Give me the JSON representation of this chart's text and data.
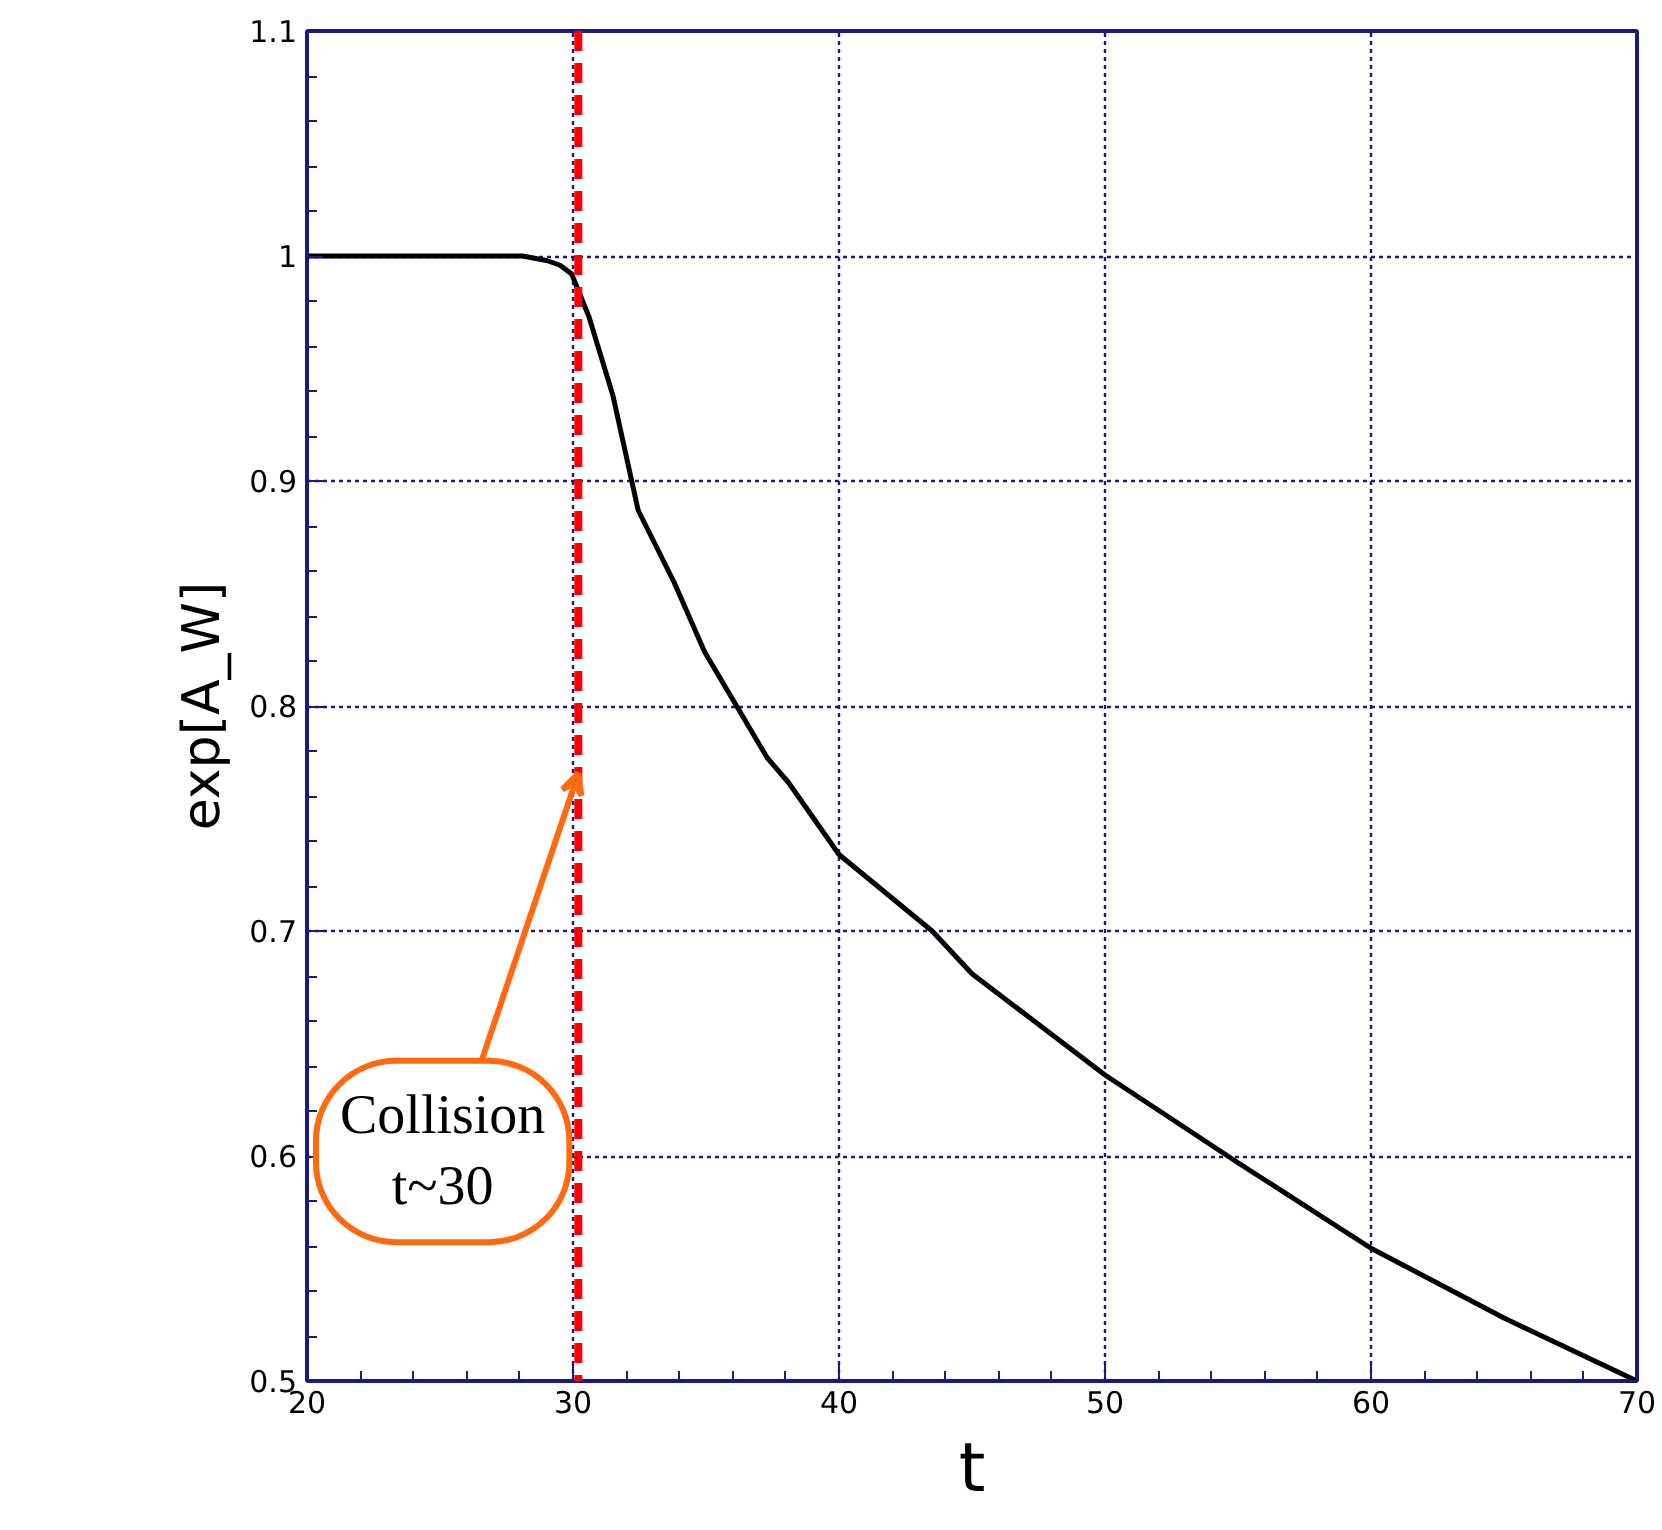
{
  "chart_data": {
    "type": "line",
    "xlabel": "t",
    "ylabel": "exp[A_W]",
    "x": [
      20,
      22,
      24,
      26,
      28,
      28.1,
      29,
      29.5,
      29.95,
      30.6,
      31.5,
      32.45,
      33.8,
      34.95,
      37.3,
      38.1,
      40,
      43.5,
      45,
      50,
      55,
      60,
      65,
      70
    ],
    "series": [
      {
        "color": "#000000",
        "values": [
          1.0,
          1.0,
          1.0,
          1.0,
          1.0,
          1.0,
          0.998,
          0.996,
          0.992,
          0.973,
          0.938,
          0.887,
          0.855,
          0.824,
          0.777,
          0.766,
          0.734,
          0.7,
          0.681,
          0.636,
          0.597,
          0.559,
          0.528,
          0.5
        ]
      }
    ],
    "xlim": [
      20,
      70
    ],
    "ylim": [
      0.5,
      1.1
    ],
    "xticks": [
      20,
      30,
      40,
      50,
      60,
      70
    ],
    "yticks": [
      {
        "value": 0.5,
        "label": "0.5"
      },
      {
        "value": 0.6,
        "label": "0.6"
      },
      {
        "value": 0.7,
        "label": "0.7"
      },
      {
        "value": 0.8,
        "label": "0.8"
      },
      {
        "value": 0.9,
        "label": "0.9"
      },
      {
        "value": 1.0,
        "label": "1"
      },
      {
        "value": 1.1,
        "label": "1.1"
      }
    ],
    "grid": true,
    "line_style": "solid",
    "ref_lines": [
      {
        "axis": "x",
        "value": 30.2,
        "color": "#ff0000",
        "line_style": "dashed"
      }
    ],
    "annotations": [
      {
        "text": "Collision\nt~30",
        "x": 30.2,
        "y": 0.77
      }
    ]
  }
}
